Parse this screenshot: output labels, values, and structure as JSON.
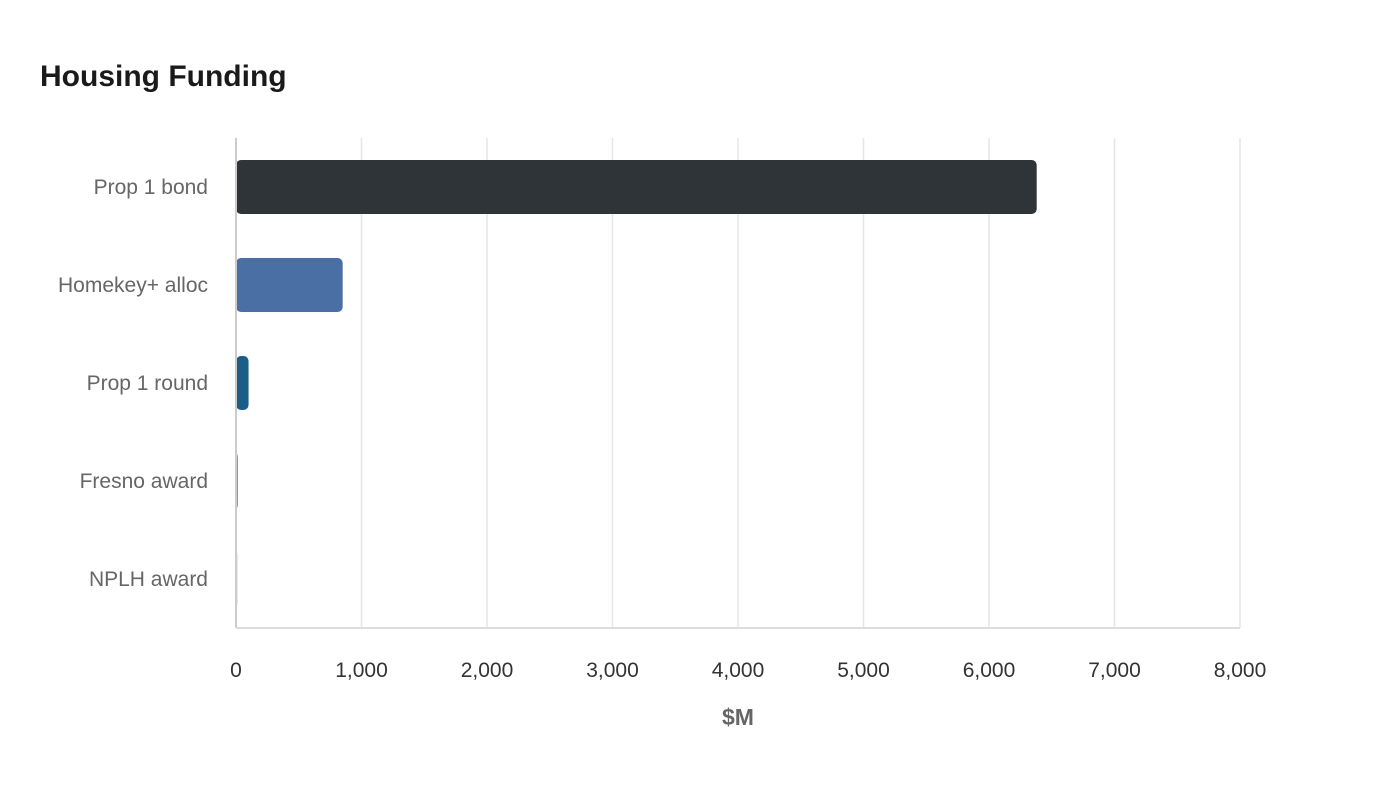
{
  "chart_data": {
    "type": "bar",
    "orientation": "horizontal",
    "title": "Housing Funding",
    "xlabel": "$M",
    "ylabel": "",
    "categories": [
      "Prop 1 bond",
      "Homekey+ alloc",
      "Prop 1 round",
      "Fresno award",
      "NPLH award"
    ],
    "values": [
      6380,
      850,
      100,
      15,
      5
    ],
    "colors": [
      "#2e3438",
      "#4a6fa5",
      "#1b5e86",
      "#888888",
      "#d0d0d0"
    ],
    "xlim": [
      0,
      8000
    ],
    "xticks": [
      0,
      1000,
      2000,
      3000,
      4000,
      5000,
      6000,
      7000,
      8000
    ],
    "xtick_labels": [
      "0",
      "1,000",
      "2,000",
      "3,000",
      "4,000",
      "5,000",
      "6,000",
      "7,000",
      "8,000"
    ],
    "grid": "vertical",
    "legend": "none"
  }
}
